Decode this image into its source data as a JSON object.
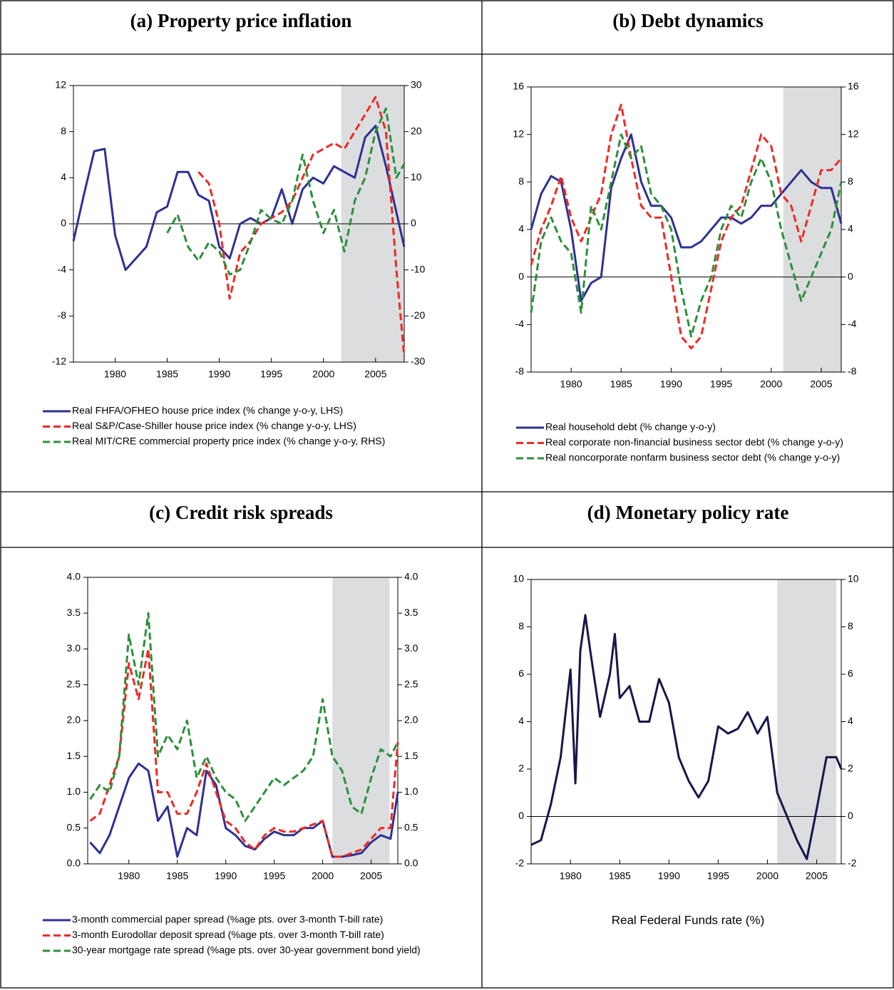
{
  "chart_data": [
    {
      "type": "line",
      "title": "(a) Property price inflation",
      "x": [
        1976,
        1977,
        1978,
        1979,
        1980,
        1981,
        1982,
        1983,
        1984,
        1985,
        1986,
        1987,
        1988,
        1989,
        1990,
        1991,
        1992,
        1993,
        1994,
        1995,
        1996,
        1997,
        1998,
        1999,
        2000,
        2001,
        2002,
        2003,
        2004,
        2005,
        2006,
        2007,
        2007.75
      ],
      "xlim": [
        1976,
        2007.75
      ],
      "xticks": [
        1980,
        1985,
        1990,
        1995,
        2000,
        2005
      ],
      "ylim": [
        -12,
        12
      ],
      "yticks": [
        -12,
        -8,
        -4,
        0,
        4,
        8,
        12
      ],
      "y2lim": [
        -30,
        30
      ],
      "y2ticks": [
        -30,
        -20,
        -10,
        0,
        10,
        20,
        30
      ],
      "shaded": [
        2001.7,
        2007.75
      ],
      "zero_line": true,
      "legend": "below",
      "series": [
        {
          "name": "Real FHFA/OFHEO house price index (% change y-o-y, LHS)",
          "color": "#2e3192",
          "dash": false,
          "values": [
            -1.5,
            2.5,
            6.3,
            6.5,
            -1,
            -4,
            -3,
            -2,
            1,
            1.5,
            4.5,
            4.5,
            2.5,
            2,
            -2,
            -3,
            0,
            0.5,
            0,
            0.5,
            3,
            0,
            3,
            4,
            3.5,
            5,
            4.5,
            4,
            7.5,
            8.5,
            5,
            1,
            -2
          ]
        },
        {
          "name": "Real S&P/Case-Shiller house price index (% change y-o-y, LHS)",
          "color": "#ee2a24",
          "dash": true,
          "values": [
            null,
            null,
            null,
            null,
            null,
            null,
            null,
            null,
            null,
            null,
            null,
            null,
            4.5,
            3.5,
            0,
            -6.5,
            -2.5,
            -1.5,
            0,
            0.5,
            1,
            2,
            4,
            6,
            6.5,
            7,
            6.5,
            8,
            9.5,
            11,
            8,
            -4,
            -11.5
          ]
        },
        {
          "name": "Real MIT/CRE commercial property price index (% change y-o-y, RHS)",
          "color": "#2c8f3a",
          "dash": true,
          "axis": "y2",
          "values": [
            null,
            null,
            null,
            null,
            null,
            null,
            null,
            null,
            null,
            -2,
            2,
            -5,
            -8,
            -4,
            -6,
            -11,
            -10,
            -4,
            3,
            1,
            0,
            5,
            15,
            5,
            -2,
            3,
            -6,
            5,
            10,
            20,
            25,
            10,
            13
          ]
        }
      ]
    },
    {
      "type": "line",
      "title": "(b) Debt dynamics",
      "x": [
        1976,
        1977,
        1978,
        1979,
        1980,
        1981,
        1982,
        1983,
        1984,
        1985,
        1986,
        1987,
        1988,
        1989,
        1990,
        1991,
        1992,
        1993,
        1994,
        1995,
        1996,
        1997,
        1998,
        1999,
        2000,
        2001,
        2002,
        2003,
        2004,
        2005,
        2006,
        2007
      ],
      "xlim": [
        1976,
        2007
      ],
      "xticks": [
        1980,
        1985,
        1990,
        1995,
        2000,
        2005
      ],
      "ylim": [
        -8,
        16
      ],
      "yticks": [
        -8,
        -4,
        0,
        4,
        8,
        12,
        16
      ],
      "y2lim": [
        -8,
        16
      ],
      "y2ticks": [
        -8,
        -4,
        0,
        4,
        8,
        12,
        16
      ],
      "shaded": [
        2001.2,
        2007
      ],
      "zero_line": true,
      "legend": "below",
      "series": [
        {
          "name": "Real household debt (% change y-o-y)",
          "color": "#2e3192",
          "dash": false,
          "values": [
            4,
            7,
            8.5,
            8,
            4,
            -2,
            -0.5,
            0,
            7.5,
            10,
            12,
            8,
            6,
            6,
            5,
            2.5,
            2.5,
            3,
            4,
            5,
            5,
            4.5,
            5,
            6,
            6,
            7,
            8,
            9,
            8,
            7.5,
            7.5,
            4.5
          ]
        },
        {
          "name": "Real corporate non-financial business sector debt (% change y-o-y)",
          "color": "#ee2a24",
          "dash": true,
          "values": [
            1,
            4,
            6,
            8.5,
            5,
            3,
            5,
            7,
            12,
            14.5,
            10,
            6,
            5,
            5,
            0,
            -5,
            -6,
            -5,
            -1,
            3,
            5,
            6,
            9,
            12,
            11,
            7,
            6,
            3,
            6,
            9,
            9,
            10
          ]
        },
        {
          "name": "Real noncorporate nonfarm business sector debt (% change y-o-y)",
          "color": "#2c8f3a",
          "dash": true,
          "values": [
            -3,
            3,
            5,
            3,
            2,
            -3,
            6,
            4,
            8,
            12,
            10,
            11,
            7,
            6,
            4,
            -1,
            -5,
            -2,
            0,
            4,
            6,
            5,
            8,
            10,
            8,
            4,
            1,
            -2,
            0,
            2,
            4,
            8
          ]
        }
      ]
    },
    {
      "type": "line",
      "title": "(c) Credit risk spreads",
      "x": [
        1976,
        1977,
        1978,
        1979,
        1980,
        1981,
        1982,
        1983,
        1984,
        1985,
        1986,
        1987,
        1988,
        1989,
        1990,
        1991,
        1992,
        1993,
        1994,
        1995,
        1996,
        1997,
        1998,
        1999,
        2000,
        2001,
        2002,
        2003,
        2004,
        2005,
        2006,
        2007,
        2007.75
      ],
      "xlim": [
        1975.75,
        2007.75
      ],
      "xticks": [
        1980,
        1985,
        1990,
        1995,
        2000,
        2005
      ],
      "ylim": [
        0,
        4
      ],
      "yticks": [
        {
          "value": 0,
          "label": "0.0"
        },
        0.5,
        {
          "value": 1,
          "label": "1.0"
        },
        1.5,
        {
          "value": 2,
          "label": "2.0"
        },
        2.5,
        {
          "value": 3,
          "label": "3.0"
        },
        3.5,
        {
          "value": 4,
          "label": "4.0"
        }
      ],
      "y2lim": [
        0,
        4
      ],
      "y2ticks": [
        {
          "value": 0,
          "label": "0.0"
        },
        0.5,
        {
          "value": 1,
          "label": "1.0"
        },
        1.5,
        {
          "value": 2,
          "label": "2.0"
        },
        2.5,
        {
          "value": 3,
          "label": "3.0"
        },
        3.5,
        {
          "value": 4,
          "label": "4.0"
        }
      ],
      "shaded": [
        2001,
        2006.9
      ],
      "zero_line": false,
      "legend": "below",
      "series": [
        {
          "name": "3-month commercial paper spread (%age pts. over 3-month T-bill rate)",
          "color": "#2e3192",
          "dash": false,
          "values": [
            0.3,
            0.15,
            0.4,
            0.8,
            1.2,
            1.4,
            1.3,
            0.6,
            0.8,
            0.1,
            0.5,
            0.4,
            1.3,
            1.1,
            0.5,
            0.4,
            0.25,
            0.2,
            0.35,
            0.45,
            0.4,
            0.4,
            0.5,
            0.5,
            0.6,
            0.1,
            0.1,
            0.12,
            0.15,
            0.3,
            0.4,
            0.35,
            1.0
          ]
        },
        {
          "name": "3-month Eurodollar deposit spread (%age pts. over 3-month T-bill rate)",
          "color": "#ee2a24",
          "dash": true,
          "values": [
            0.6,
            0.7,
            1.1,
            1.5,
            2.8,
            2.3,
            3.0,
            1.0,
            1.0,
            0.7,
            0.7,
            1.0,
            1.4,
            1.0,
            0.6,
            0.5,
            0.3,
            0.2,
            0.4,
            0.5,
            0.45,
            0.45,
            0.5,
            0.55,
            0.6,
            0.1,
            0.1,
            0.15,
            0.2,
            0.35,
            0.5,
            0.5,
            1.7
          ]
        },
        {
          "name": "30-year mortgage rate spread (%age pts. over 30-year government bond yield)",
          "color": "#2c8f3a",
          "dash": true,
          "values": [
            0.9,
            1.1,
            1.0,
            1.5,
            3.2,
            2.5,
            3.5,
            1.5,
            1.8,
            1.6,
            2.0,
            1.2,
            1.5,
            1.2,
            1.0,
            0.9,
            0.6,
            0.8,
            1.0,
            1.2,
            1.1,
            1.2,
            1.3,
            1.5,
            2.3,
            1.5,
            1.3,
            0.8,
            0.7,
            1.2,
            1.6,
            1.5,
            1.7
          ]
        }
      ]
    },
    {
      "type": "line",
      "title": "(d) Monetary policy rate",
      "x": [
        1976,
        1977,
        1978,
        1979,
        1980,
        1980.5,
        1981,
        1981.5,
        1982,
        1983,
        1984,
        1984.5,
        1985,
        1986,
        1987,
        1988,
        1989,
        1990,
        1991,
        1992,
        1993,
        1994,
        1995,
        1996,
        1997,
        1998,
        1999,
        2000,
        2001,
        2002,
        2003,
        2004,
        2005,
        2006,
        2007,
        2007.5
      ],
      "xlim": [
        1976,
        2007.5
      ],
      "xticks": [
        1980,
        1985,
        1990,
        1995,
        2000,
        2005
      ],
      "ylim": [
        -2,
        10
      ],
      "yticks": [
        -2,
        0,
        2,
        4,
        6,
        8,
        10
      ],
      "y2lim": [
        -2,
        10
      ],
      "y2ticks": [
        -2,
        0,
        2,
        4,
        6,
        8,
        10
      ],
      "shaded": [
        2001,
        2007
      ],
      "zero_line": true,
      "legend": "caption",
      "series": [
        {
          "name": "Real Federal Funds rate (%)",
          "color": "#14174a",
          "dash": false,
          "values": [
            -1.2,
            -1,
            0.5,
            2.5,
            6.2,
            1.4,
            7,
            8.5,
            7,
            4.2,
            6,
            7.7,
            5,
            5.5,
            4,
            4,
            5.8,
            4.8,
            2.5,
            1.5,
            0.8,
            1.5,
            3.8,
            3.5,
            3.7,
            4.4,
            3.5,
            4.2,
            1,
            0,
            -1,
            -1.8,
            0.3,
            2.5,
            2.5,
            2
          ]
        }
      ]
    }
  ]
}
